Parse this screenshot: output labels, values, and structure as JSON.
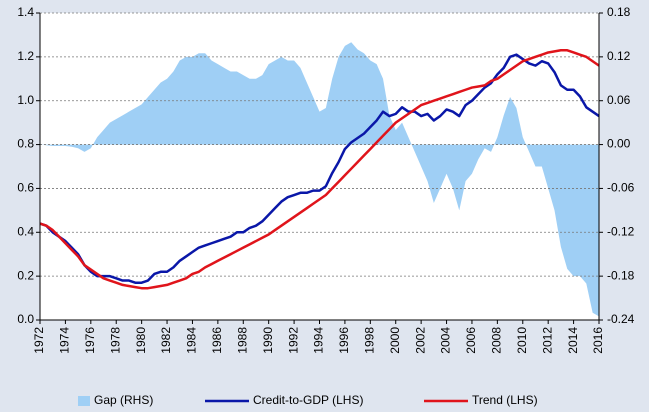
{
  "chart_data": {
    "type": "line",
    "x": [
      1972,
      1972.5,
      1973,
      1973.5,
      1974,
      1974.5,
      1975,
      1975.5,
      1976,
      1976.5,
      1977,
      1977.5,
      1978,
      1978.5,
      1979,
      1979.5,
      1980,
      1980.5,
      1981,
      1981.5,
      1982,
      1982.5,
      1983,
      1983.5,
      1984,
      1984.5,
      1985,
      1985.5,
      1986,
      1986.5,
      1987,
      1987.5,
      1988,
      1988.5,
      1989,
      1989.5,
      1990,
      1990.5,
      1991,
      1991.5,
      1992,
      1992.5,
      1993,
      1993.5,
      1994,
      1994.5,
      1995,
      1995.5,
      1996,
      1996.5,
      1997,
      1997.5,
      1998,
      1998.5,
      1999,
      1999.5,
      2000,
      2000.5,
      2001,
      2001.5,
      2002,
      2002.5,
      2003,
      2003.5,
      2004,
      2004.5,
      2005,
      2005.5,
      2006,
      2006.5,
      2007,
      2007.5,
      2008,
      2008.5,
      2009,
      2009.5,
      2010,
      2010.5,
      2011,
      2011.5,
      2012,
      2012.5,
      2013,
      2013.5,
      2014,
      2014.5,
      2015,
      2015.5,
      2016
    ],
    "series": [
      {
        "name": "Gap (RHS)",
        "kind": "area",
        "axis": "y2",
        "color": "#9fcff5",
        "values": [
          0,
          -0.001,
          -0.002,
          -0.002,
          -0.002,
          -0.003,
          -0.005,
          -0.01,
          -0.005,
          0.01,
          0.02,
          0.03,
          0.035,
          0.04,
          0.045,
          0.05,
          0.055,
          0.065,
          0.075,
          0.085,
          0.09,
          0.1,
          0.115,
          0.12,
          0.12,
          0.125,
          0.125,
          0.115,
          0.11,
          0.105,
          0.1,
          0.1,
          0.095,
          0.09,
          0.09,
          0.095,
          0.11,
          0.115,
          0.12,
          0.115,
          0.115,
          0.105,
          0.085,
          0.065,
          0.045,
          0.05,
          0.09,
          0.12,
          0.135,
          0.14,
          0.13,
          0.125,
          0.115,
          0.11,
          0.09,
          0.04,
          0.02,
          0.03,
          0.01,
          -0.01,
          -0.03,
          -0.05,
          -0.08,
          -0.06,
          -0.04,
          -0.06,
          -0.09,
          -0.05,
          -0.04,
          -0.02,
          -0.005,
          -0.01,
          0.01,
          0.04,
          0.065,
          0.05,
          0.01,
          -0.01,
          -0.03,
          -0.03,
          -0.06,
          -0.09,
          -0.14,
          -0.17,
          -0.18,
          -0.18,
          -0.19,
          -0.23,
          -0.235
        ]
      },
      {
        "name": "Credit-to-GDP (LHS)",
        "kind": "line",
        "color": "#0a17a8",
        "values": [
          0.44,
          0.43,
          0.4,
          0.38,
          0.36,
          0.33,
          0.3,
          0.25,
          0.22,
          0.2,
          0.2,
          0.2,
          0.19,
          0.18,
          0.18,
          0.17,
          0.17,
          0.18,
          0.21,
          0.22,
          0.22,
          0.24,
          0.27,
          0.29,
          0.31,
          0.33,
          0.34,
          0.35,
          0.36,
          0.37,
          0.38,
          0.4,
          0.4,
          0.42,
          0.43,
          0.45,
          0.48,
          0.51,
          0.54,
          0.56,
          0.57,
          0.58,
          0.58,
          0.59,
          0.59,
          0.61,
          0.67,
          0.72,
          0.78,
          0.81,
          0.83,
          0.85,
          0.88,
          0.91,
          0.95,
          0.93,
          0.94,
          0.97,
          0.95,
          0.95,
          0.93,
          0.94,
          0.91,
          0.93,
          0.96,
          0.95,
          0.93,
          0.98,
          1,
          1.03,
          1.06,
          1.08,
          1.12,
          1.15,
          1.2,
          1.21,
          1.19,
          1.17,
          1.16,
          1.18,
          1.17,
          1.13,
          1.07,
          1.05,
          1.05,
          1.02,
          0.97,
          0.95,
          0.93
        ]
      },
      {
        "name": "Trend (LHS)",
        "kind": "line",
        "color": "#e0141b",
        "values": [
          0.44,
          0.43,
          0.41,
          0.38,
          0.35,
          0.32,
          0.29,
          0.25,
          0.23,
          0.21,
          0.19,
          0.18,
          0.17,
          0.16,
          0.155,
          0.15,
          0.145,
          0.145,
          0.15,
          0.155,
          0.16,
          0.17,
          0.18,
          0.19,
          0.21,
          0.22,
          0.24,
          0.255,
          0.27,
          0.285,
          0.3,
          0.315,
          0.33,
          0.345,
          0.36,
          0.375,
          0.39,
          0.41,
          0.43,
          0.45,
          0.47,
          0.49,
          0.51,
          0.53,
          0.55,
          0.57,
          0.6,
          0.63,
          0.66,
          0.69,
          0.72,
          0.75,
          0.78,
          0.81,
          0.84,
          0.87,
          0.9,
          0.92,
          0.94,
          0.96,
          0.98,
          0.99,
          1,
          1.01,
          1.02,
          1.03,
          1.04,
          1.05,
          1.06,
          1.065,
          1.07,
          1.09,
          1.1,
          1.12,
          1.14,
          1.16,
          1.18,
          1.19,
          1.2,
          1.21,
          1.22,
          1.225,
          1.23,
          1.23,
          1.22,
          1.21,
          1.2,
          1.18,
          1.16
        ]
      }
    ],
    "xlim": [
      1972,
      2016
    ],
    "xticks": [
      1972,
      1974,
      1976,
      1978,
      1980,
      1982,
      1984,
      1986,
      1988,
      1990,
      1992,
      1994,
      1996,
      1998,
      2000,
      2002,
      2004,
      2006,
      2008,
      2010,
      2012,
      2014,
      2016
    ],
    "ylim": [
      0,
      1.4
    ],
    "yticks": [
      {
        "value": 0,
        "label": "0.0"
      },
      0.2,
      0.4,
      0.6,
      0.8,
      {
        "value": 1,
        "label": "1.0"
      },
      1.2,
      1.4
    ],
    "y2lim": [
      -0.24,
      0.18
    ],
    "y2ticks": [
      -0.24,
      -0.18,
      -0.12,
      -0.06,
      {
        "value": 0,
        "label": "0.00"
      },
      0.06,
      0.12,
      0.18
    ],
    "grid": true,
    "legend": "bottom"
  }
}
